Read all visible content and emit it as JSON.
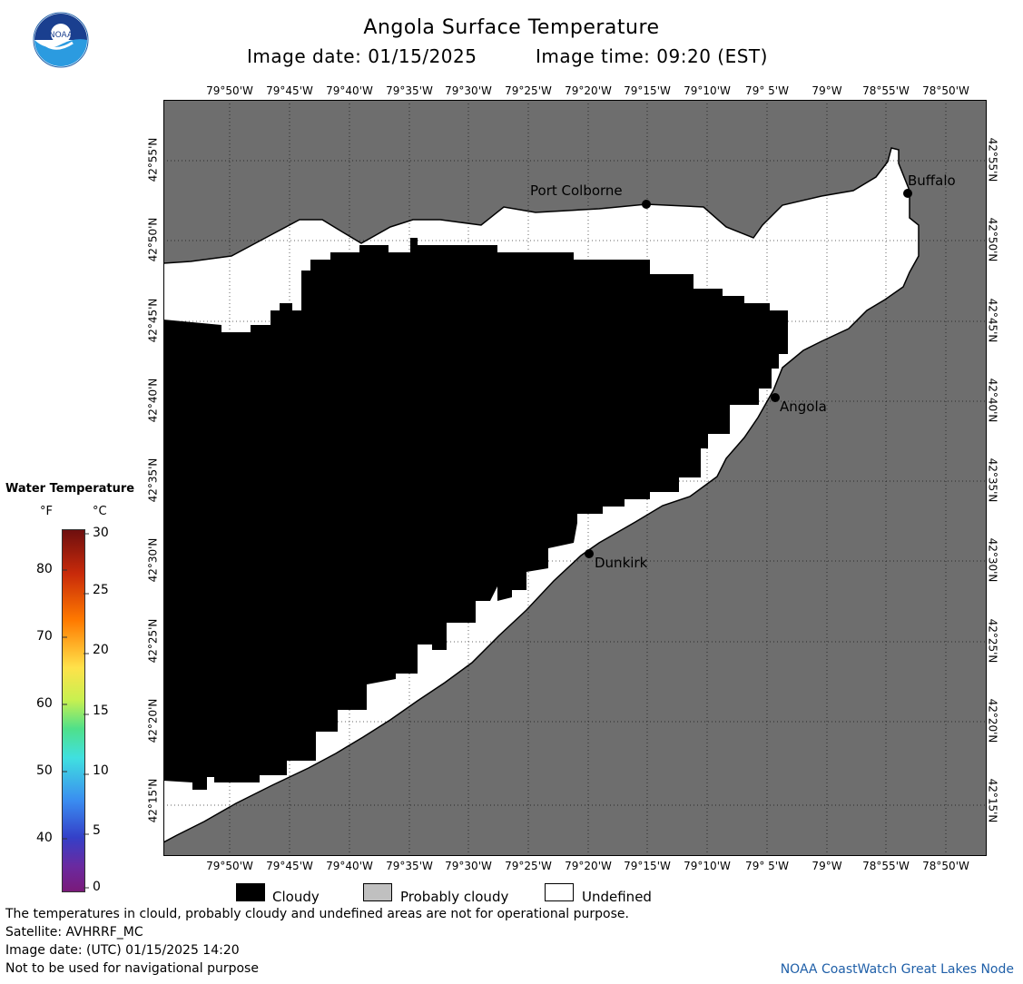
{
  "header": {
    "title": "Angola Surface Temperature",
    "image_date": "Image date: 01/15/2025",
    "image_time": "Image time: 09:20 (EST)"
  },
  "logo": {
    "text": "NOAA"
  },
  "map": {
    "lon_labels": [
      "79°50'W",
      "79°45'W",
      "79°40'W",
      "79°35'W",
      "79°30'W",
      "79°25'W",
      "79°20'W",
      "79°15'W",
      "79°10'W",
      "79° 5'W",
      "79°W",
      "78°55'W",
      "78°50'W"
    ],
    "lat_labels": [
      "42°55'N",
      "42°50'N",
      "42°45'N",
      "42°40'N",
      "42°35'N",
      "42°30'N",
      "42°25'N",
      "42°20'N",
      "42°15'N"
    ],
    "places": [
      {
        "name": "Port Colborne"
      },
      {
        "name": "Buffalo"
      },
      {
        "name": "Angola"
      },
      {
        "name": "Dunkirk"
      }
    ],
    "colors": {
      "land": "#6e6e6e",
      "cloud": "#000000",
      "undefined": "#ffffff"
    }
  },
  "legend": {
    "title": "Water Temperature",
    "unit_f": "°F",
    "unit_c": "°C",
    "f_labels": [
      "80",
      "70",
      "60",
      "50",
      "40"
    ],
    "c_labels": [
      "30",
      "25",
      "20",
      "15",
      "10",
      "5",
      "0"
    ]
  },
  "key": [
    {
      "label": "Cloudy",
      "color": "#000000"
    },
    {
      "label": "Probably cloudy",
      "color": "#c0c0c0"
    },
    {
      "label": "Undefined",
      "color": "#ffffff"
    }
  ],
  "footer": {
    "disclaimer": "The temperatures in clould, probably cloudy and undefined areas are not for operational purpose.",
    "satellite": "Satellite: AVHRRF_MC",
    "utc_date": "Image date: (UTC) 01/15/2025  14:20",
    "navigation": "Not to be used for navigational purpose",
    "credit": "NOAA CoastWatch Great Lakes Node"
  }
}
